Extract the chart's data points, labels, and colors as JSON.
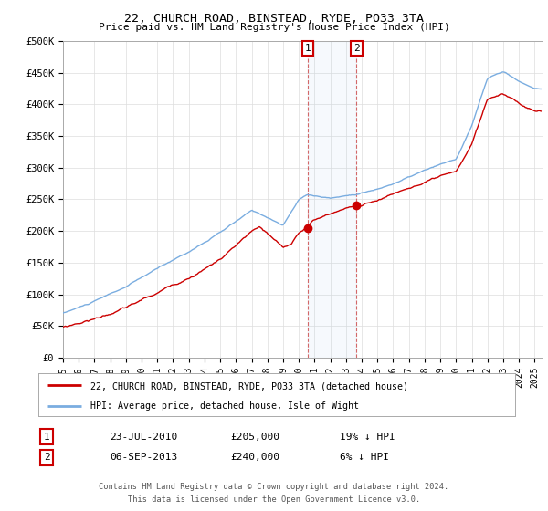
{
  "title": "22, CHURCH ROAD, BINSTEAD, RYDE, PO33 3TA",
  "subtitle": "Price paid vs. HM Land Registry's House Price Index (HPI)",
  "ylabel_ticks": [
    "£0",
    "£50K",
    "£100K",
    "£150K",
    "£200K",
    "£250K",
    "£300K",
    "£350K",
    "£400K",
    "£450K",
    "£500K"
  ],
  "ytick_values": [
    0,
    50000,
    100000,
    150000,
    200000,
    250000,
    300000,
    350000,
    400000,
    450000,
    500000
  ],
  "ylim": [
    0,
    500000
  ],
  "xlim_start": 1995.0,
  "xlim_end": 2025.5,
  "hpi_color": "#7aade0",
  "price_color": "#cc0000",
  "purchase1_date": 2010.55,
  "purchase1_price": 205000,
  "purchase2_date": 2013.67,
  "purchase2_price": 240000,
  "legend_label1": "22, CHURCH ROAD, BINSTEAD, RYDE, PO33 3TA (detached house)",
  "legend_label2": "HPI: Average price, detached house, Isle of Wight",
  "sale1_label": "1",
  "sale1_date_str": "23-JUL-2010",
  "sale1_price_str": "£205,000",
  "sale1_hpi_str": "19% ↓ HPI",
  "sale2_label": "2",
  "sale2_date_str": "06-SEP-2013",
  "sale2_price_str": "£240,000",
  "sale2_hpi_str": "6% ↓ HPI",
  "footnote1": "Contains HM Land Registry data © Crown copyright and database right 2024.",
  "footnote2": "This data is licensed under the Open Government Licence v3.0.",
  "background_color": "#ffffff",
  "grid_color": "#dddddd",
  "hpi_anchors_x": [
    1995,
    1997,
    1999,
    2001,
    2003,
    2005,
    2007,
    2008,
    2009,
    2010,
    2010.55,
    2011,
    2012,
    2013,
    2013.67,
    2014,
    2015,
    2016,
    2017,
    2018,
    2019,
    2020,
    2021,
    2022,
    2023,
    2024,
    2025
  ],
  "hpi_anchors_y": [
    70000,
    88000,
    110000,
    138000,
    165000,
    195000,
    228000,
    218000,
    205000,
    245000,
    253086,
    252000,
    248000,
    252000,
    255319,
    258000,
    263000,
    272000,
    282000,
    292000,
    300000,
    308000,
    360000,
    435000,
    445000,
    430000,
    418000
  ],
  "price_anchors_x": [
    1995,
    1997,
    1999,
    2001,
    2003,
    2005,
    2007,
    2007.5,
    2008,
    2009,
    2009.5,
    2010,
    2010.55,
    2011,
    2012,
    2013,
    2013.67,
    2014,
    2015,
    2016,
    2017,
    2018,
    2019,
    2020,
    2021,
    2022,
    2023,
    2024,
    2025
  ],
  "price_anchors_y": [
    48000,
    62000,
    80000,
    102000,
    128000,
    158000,
    200000,
    205000,
    195000,
    170000,
    175000,
    195000,
    205000,
    215000,
    225000,
    235000,
    240000,
    238000,
    248000,
    258000,
    268000,
    275000,
    282000,
    285000,
    330000,
    400000,
    410000,
    395000,
    382000
  ]
}
